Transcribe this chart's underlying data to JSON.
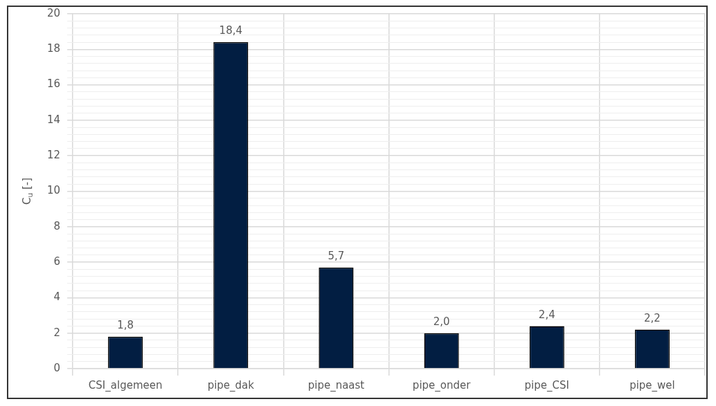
{
  "chart_data": {
    "type": "bar",
    "ylabel": "C$_{u}$ [-]",
    "categories": [
      "CSI_algemeen",
      "pipe_dak",
      "pipe_naast",
      "pipe_onder",
      "pipe_CSI",
      "pipe_wel"
    ],
    "values": [
      1.8,
      18.4,
      5.7,
      2.0,
      2.4,
      2.2
    ],
    "value_labels": [
      "1,8",
      "18,4",
      "5,7",
      "2,0",
      "2,4",
      "2,2"
    ],
    "color": "#021e42",
    "ylim": [
      0,
      20
    ],
    "yticks": [
      0,
      {
        "value": 0.4,
        "label": null
      },
      {
        "value": 0.8,
        "label": null
      },
      {
        "value": 1.2,
        "label": null
      },
      {
        "value": 1.6,
        "label": null
      },
      2,
      {
        "value": 2.4,
        "label": null
      },
      {
        "value": 2.8,
        "label": null
      },
      {
        "value": 3.2,
        "label": null
      },
      {
        "value": 3.6,
        "label": null
      },
      4,
      {
        "value": 4.4,
        "label": null
      },
      {
        "value": 4.8,
        "label": null
      },
      {
        "value": 5.2,
        "label": null
      },
      {
        "value": 5.6,
        "label": null
      },
      6,
      {
        "value": 6.4,
        "label": null
      },
      {
        "value": 6.8,
        "label": null
      },
      {
        "value": 7.2,
        "label": null
      },
      {
        "value": 7.6,
        "label": null
      },
      8,
      {
        "value": 8.4,
        "label": null
      },
      {
        "value": 8.8,
        "label": null
      },
      {
        "value": 9.2,
        "label": null
      },
      {
        "value": 9.6,
        "label": null
      },
      10,
      {
        "value": 10.4,
        "label": null
      },
      {
        "value": 10.8,
        "label": null
      },
      {
        "value": 11.2,
        "label": null
      },
      {
        "value": 11.6,
        "label": null
      },
      12,
      {
        "value": 12.4,
        "label": null
      },
      {
        "value": 12.8,
        "label": null
      },
      {
        "value": 13.2,
        "label": null
      },
      {
        "value": 13.6,
        "label": null
      },
      14,
      {
        "value": 14.4,
        "label": null
      },
      {
        "value": 14.8,
        "label": null
      },
      {
        "value": 15.2,
        "label": null
      },
      {
        "value": 15.6,
        "label": null
      },
      16,
      {
        "value": 16.4,
        "label": null
      },
      {
        "value": 16.8,
        "label": null
      },
      {
        "value": 17.2,
        "label": null
      },
      {
        "value": 17.6,
        "label": null
      },
      18,
      {
        "value": 18.4,
        "label": null
      },
      {
        "value": 18.8,
        "label": null
      },
      {
        "value": 19.2,
        "label": null
      },
      {
        "value": 19.6,
        "label": null
      },
      20
    ],
    "grid": true,
    "legend": false
  }
}
